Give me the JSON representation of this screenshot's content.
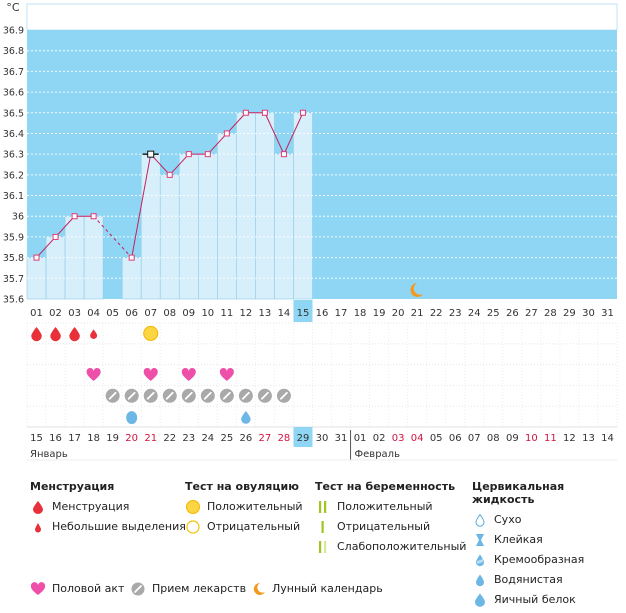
{
  "chart_data": {
    "type": "line",
    "title": "",
    "ylabel": "°C",
    "xlabel": "",
    "ylim": [
      35.6,
      36.9
    ],
    "y_ticks": [
      "36.9",
      "36.8",
      "36.7",
      "36.6",
      "36.5",
      "36.4",
      "36.3",
      "36.2",
      "36.1",
      "36",
      "35.9",
      "35.8",
      "35.7",
      "35.6"
    ],
    "x_days": [
      "01",
      "02",
      "03",
      "04",
      "05",
      "06",
      "07",
      "08",
      "09",
      "10",
      "11",
      "12",
      "13",
      "14",
      "15",
      "16",
      "17",
      "18",
      "19",
      "20",
      "21",
      "22",
      "23",
      "24",
      "25",
      "26",
      "27",
      "28",
      "29",
      "30",
      "31"
    ],
    "current_day_index": 14,
    "series": [
      {
        "values": [
          35.8,
          35.9,
          36.0,
          36.0,
          null,
          35.8,
          36.3,
          36.2,
          36.3,
          36.3,
          36.4,
          36.5,
          36.5,
          36.3,
          36.5
        ]
      }
    ],
    "dashed_gap": [
      3,
      5
    ],
    "highlight_point_index": 6,
    "bar_fill_indices": [
      0,
      1,
      2,
      3,
      5,
      6,
      7,
      8,
      9,
      10,
      11,
      12,
      13,
      14
    ],
    "moon_day_index": 20,
    "colors": {
      "sky": "#8fd6f4",
      "bar": "#d6effb",
      "bar_edge": "#8ccbea",
      "line": "#c51f5d",
      "marker": "#e03b73",
      "today_bg": "#8fd6f4"
    }
  },
  "symptom_rows": {
    "menstruation": [
      {
        "day": 0,
        "type": "big"
      },
      {
        "day": 1,
        "type": "big"
      },
      {
        "day": 2,
        "type": "big"
      },
      {
        "day": 3,
        "type": "small"
      }
    ],
    "ovulation": [
      {
        "day": 6,
        "type": "positive"
      }
    ],
    "intercourse": [
      3,
      6,
      8,
      10
    ],
    "medication": [
      4,
      5,
      6,
      7,
      8,
      9,
      10,
      11,
      12,
      13
    ],
    "fluid": [
      {
        "day": 5,
        "type": "egg-white"
      },
      {
        "day": 11,
        "type": "watery"
      }
    ]
  },
  "cycle_days": {
    "labels": [
      "15",
      "16",
      "17",
      "18",
      "19",
      "20",
      "21",
      "22",
      "23",
      "24",
      "25",
      "26",
      "27",
      "28",
      "29",
      "30",
      "31",
      "01",
      "02",
      "03",
      "04",
      "05",
      "06",
      "07",
      "08",
      "09",
      "10",
      "11",
      "12",
      "13",
      "14"
    ],
    "weekend_indices": [
      5,
      6,
      12,
      13,
      19,
      20,
      26,
      27
    ],
    "current_index": 14,
    "month_left": "Январь",
    "month_right": "Февраль",
    "month_right_index": 17
  },
  "legend": {
    "menstruation": {
      "title": "Менструация",
      "items": [
        "Менструация",
        "Небольшие выделения"
      ]
    },
    "ovulation": {
      "title": "Тест на овуляцию",
      "items": [
        "Положительный",
        "Отрицательный"
      ]
    },
    "pregnancy": {
      "title": "Тест на беременность",
      "items": [
        "Положительный",
        "Отрицательный",
        "Слабоположительный"
      ]
    },
    "fluid": {
      "title": "Цервикальная жидкость",
      "items": [
        "Сухо",
        "Клейкая",
        "Кремообразная",
        "Водянистая",
        "Яичный белок"
      ]
    }
  },
  "bottom_legend": {
    "intercourse": "Половой акт",
    "medication": "Прием лекарств",
    "lunar": "Лунный календарь"
  }
}
